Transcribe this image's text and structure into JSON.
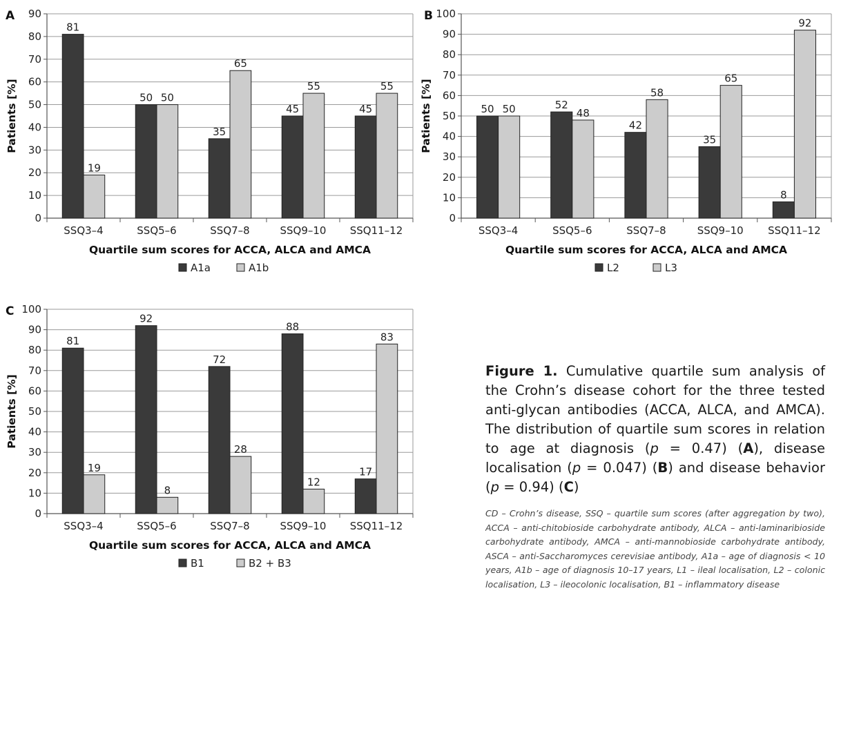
{
  "colors": {
    "dark": "#3a3a3a",
    "light": "#cccccc",
    "axis": "#555555",
    "text": "#222222"
  },
  "chart_data": [
    {
      "type": "bar",
      "panel_label": "A",
      "categories": [
        "SSQ3–4",
        "SSQ5–6",
        "SSQ7–8",
        "SSQ9–10",
        "SSQ11–12"
      ],
      "series": [
        {
          "name": "A1a",
          "values": [
            81,
            50,
            35,
            45,
            45
          ]
        },
        {
          "name": "A1b",
          "values": [
            19,
            50,
            65,
            55,
            55
          ]
        }
      ],
      "xlabel": "Quartile sum scores for ACCA, ALCA and AMCA",
      "ylabel": "Patients [%]",
      "ylim": [
        0,
        90
      ],
      "yticks": [
        0,
        10,
        20,
        30,
        40,
        50,
        60,
        70,
        80,
        90
      ],
      "grid": true,
      "legend": "bottom"
    },
    {
      "type": "bar",
      "panel_label": "B",
      "categories": [
        "SSQ3–4",
        "SSQ5–6",
        "SSQ7–8",
        "SSQ9–10",
        "SSQ11–12"
      ],
      "series": [
        {
          "name": "L2",
          "values": [
            50,
            52,
            42,
            35,
            8
          ]
        },
        {
          "name": "L3",
          "values": [
            50,
            48,
            58,
            65,
            92
          ]
        }
      ],
      "xlabel": "Quartile sum scores for ACCA, ALCA and AMCA",
      "ylabel": "Patients [%]",
      "ylim": [
        0,
        100
      ],
      "yticks": [
        0,
        10,
        20,
        30,
        40,
        50,
        60,
        70,
        80,
        90,
        100
      ],
      "grid": true,
      "legend": "bottom"
    },
    {
      "type": "bar",
      "panel_label": "C",
      "categories": [
        "SSQ3–4",
        "SSQ5–6",
        "SSQ7–8",
        "SSQ9–10",
        "SSQ11–12"
      ],
      "series": [
        {
          "name": "B1",
          "values": [
            81,
            92,
            72,
            88,
            17
          ]
        },
        {
          "name": "B2 + B3",
          "values": [
            19,
            8,
            28,
            12,
            83
          ]
        }
      ],
      "xlabel": "Quartile sum scores for ACCA, ALCA and AMCA",
      "ylabel": "Patients [%]",
      "ylim": [
        0,
        100
      ],
      "yticks": [
        0,
        10,
        20,
        30,
        40,
        50,
        60,
        70,
        80,
        90,
        100
      ],
      "grid": true,
      "legend": "bottom"
    }
  ],
  "caption": {
    "title": "Figure 1.",
    "text_1": " Cumulative quartile sum analysis of the Crohn’s disease cohort for the three tested anti-glycan antibodies (ACCA, ALCA, and AMCA). The distribution of quartile sum scores in relation to age at diagnosis (",
    "p1": "p",
    "v1": " = 0.47) (",
    "ref_a": "A",
    "text_2": "), disease localisation (",
    "p2": "p",
    "v2": " = 0.047) (",
    "ref_b": "B",
    "text_3": ") and disease behavior (",
    "p3": "p",
    "v3": " = 0.94) (",
    "ref_c": "C",
    "text_4": ")",
    "notes": "CD – Crohn’s disease, SSQ – quartile sum scores (after aggregation by two), ACCA – anti-chitobioside carbohydrate antibody, ALCA – anti-laminaribioside carbohydrate antibody, AMCA – anti-mannobioside carbohydrate antibody, ASCA – anti-Saccharomyces cerevisiae antibody, A1a – age of diagnosis < 10 years, A1b – age of diagnosis 10–17 years, L1 – ileal localisation, L2 – colonic localisation, L3 – ileocolonic localisation, B1 – inflammatory disease"
  }
}
